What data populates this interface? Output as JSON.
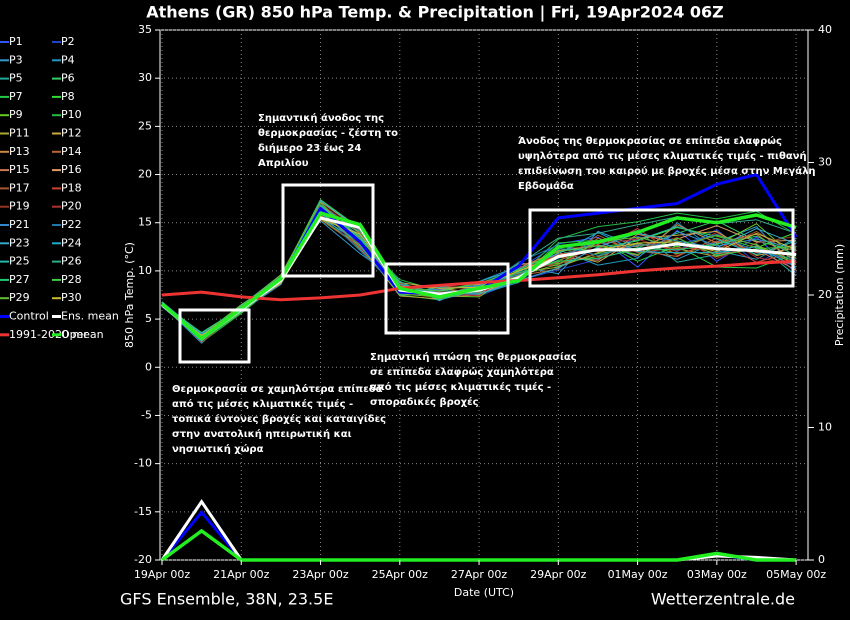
{
  "chart_data": {
    "type": "line",
    "title": "Athens  (GR)  850 hPa Temp. & Precipitation | Fri, 19Apr2024 06Z",
    "footer_left": "GFS Ensemble, 38N, 23.5E",
    "footer_right": "Wetterzentrale.de",
    "xlabel": "Date (UTC)",
    "ylabel": "850 hPa Temp. (°C)",
    "y2label": "Precipitation (mm)",
    "grid": true,
    "xlim": [
      0,
      16.3
    ],
    "xticks": [
      {
        "value": 0,
        "label": "19Apr 00z"
      },
      {
        "value": 2,
        "label": "21Apr 00z"
      },
      {
        "value": 4,
        "label": "23Apr 00z"
      },
      {
        "value": 6,
        "label": "25Apr 00z"
      },
      {
        "value": 8,
        "label": "27Apr 00z"
      },
      {
        "value": 10,
        "label": "29Apr 00z"
      },
      {
        "value": 12,
        "label": "01May 00z"
      },
      {
        "value": 14,
        "label": "03May 00z"
      },
      {
        "value": 16,
        "label": "05May 00z"
      }
    ],
    "ylim": [
      -20,
      35
    ],
    "yticks": [
      -20,
      -15,
      -10,
      -5,
      0,
      5,
      10,
      15,
      20,
      25,
      30,
      35
    ],
    "y2lim": [
      0,
      40
    ],
    "y2ticks": [
      0,
      10,
      20,
      30,
      40
    ],
    "x": [
      0,
      1,
      2,
      3,
      4,
      5,
      6,
      7,
      8,
      9,
      10,
      11,
      12,
      13,
      14,
      15,
      16
    ],
    "annotations": [
      [
        "Θερμοκρασία σε χαμηλότερα επίπεδα",
        "από τις μέσες κλιματικές τιμές -",
        "τοπικά έντονες βροχές και καταιγίδες",
        "στην ανατολική ηπειρωτική και",
        "νησιωτική χώρα"
      ],
      [
        "Σημαντική άνοδος της",
        "θερμοκρασίας - ζέστη το",
        "διήμερο 23 έως 24",
        "Απριλίου"
      ],
      [
        "Σημαντική πτώση της θερμοκρασίας",
        "σε επίπεδα ελαφρώς χαμηλότερα",
        "από τις μέσες κλιματικές τιμές -",
        "σποραδικές βροχές"
      ],
      [
        "Άνοδος της θερμοκρασίας σε επίπεδα ελαφρώς",
        "υψηλότερα από τις μέσες κλιματικές τιμές - πιθανή",
        "επιδείνωση του καιρού με βροχές μέσα στην Μεγάλη",
        "Εβδομάδα"
      ]
    ],
    "series": [
      {
        "name": "P1",
        "color": "#3355ff",
        "values": [
          6.4,
          2.8,
          6.2,
          9.3,
          15.5,
          12.4,
          8.5,
          7.2,
          8.6,
          10.2,
          12.8,
          13.5,
          10.4,
          14.2,
          11.0,
          13.5,
          9.8
        ]
      },
      {
        "name": "P2",
        "color": "#2244cc",
        "values": [
          6.6,
          3.2,
          5.8,
          8.7,
          16.8,
          14.1,
          7.6,
          8.1,
          7.4,
          9.0,
          10.1,
          11.2,
          13.6,
          12.1,
          14.3,
          10.8,
          12.9
        ]
      },
      {
        "name": "P3",
        "color": "#3399cc",
        "values": [
          6.5,
          2.5,
          6.4,
          9.6,
          15.2,
          11.8,
          8.9,
          6.9,
          8.9,
          10.5,
          9.7,
          14.1,
          12.5,
          11.2,
          13.0,
          14.6,
          10.2
        ]
      },
      {
        "name": "P4",
        "color": "#2299bb",
        "values": [
          6.7,
          3.4,
          6.0,
          8.8,
          17.1,
          13.5,
          7.9,
          7.8,
          7.6,
          8.8,
          12.2,
          10.6,
          11.3,
          15.0,
          12.1,
          11.2,
          13.4
        ]
      },
      {
        "name": "P5",
        "color": "#22aa99",
        "values": [
          6.3,
          2.9,
          5.7,
          9.2,
          16.2,
          12.9,
          8.2,
          8.3,
          8.4,
          9.9,
          11.6,
          12.9,
          14.2,
          10.9,
          11.7,
          12.8,
          9.5
        ]
      },
      {
        "name": "P6",
        "color": "#33cc66",
        "values": [
          6.8,
          3.1,
          6.3,
          9.0,
          15.9,
          13.8,
          7.5,
          7.0,
          8.1,
          10.8,
          10.5,
          11.8,
          12.4,
          13.9,
          15.2,
          13.1,
          12.1
        ]
      },
      {
        "name": "P7",
        "color": "#22cc44",
        "values": [
          6.4,
          3.6,
          6.1,
          8.6,
          16.5,
          12.2,
          8.6,
          7.7,
          7.9,
          9.2,
          12.9,
          13.2,
          11.0,
          12.6,
          10.4,
          10.3,
          11.8
        ]
      },
      {
        "name": "P8",
        "color": "#33dd33",
        "values": [
          6.6,
          2.7,
          5.9,
          9.4,
          17.4,
          14.4,
          8.0,
          8.5,
          8.7,
          9.6,
          11.1,
          12.4,
          13.1,
          14.5,
          13.6,
          12.4,
          14.0
        ]
      },
      {
        "name": "P9",
        "color": "#66cc22",
        "values": [
          6.5,
          3.3,
          6.5,
          9.1,
          15.4,
          12.6,
          7.7,
          7.4,
          7.3,
          10.1,
          10.8,
          11.5,
          12.9,
          11.8,
          12.7,
          14.9,
          11.3
        ]
      },
      {
        "name": "P10",
        "color": "#22bb44",
        "values": [
          6.7,
          2.6,
          5.6,
          8.9,
          16.9,
          13.2,
          9.1,
          7.9,
          8.8,
          9.4,
          13.3,
          14.6,
          15.1,
          16.0,
          15.4,
          16.2,
          13.8
        ]
      },
      {
        "name": "P11",
        "color": "#aaaa33",
        "values": [
          6.4,
          3.5,
          6.2,
          9.5,
          16.1,
          12.7,
          7.4,
          7.1,
          8.5,
          9.8,
          10.4,
          11.9,
          12.8,
          12.3,
          11.5,
          12.6,
          10.7
        ]
      },
      {
        "name": "P12",
        "color": "#ccaa44",
        "values": [
          6.6,
          2.9,
          5.8,
          8.8,
          15.7,
          13.6,
          8.8,
          8.2,
          7.7,
          9.1,
          11.9,
          10.9,
          13.4,
          13.7,
          14.1,
          11.6,
          12.4
        ]
      },
      {
        "name": "P13",
        "color": "#cc8844",
        "values": [
          6.5,
          3.1,
          6.0,
          9.3,
          17.2,
          14.2,
          8.3,
          7.5,
          8.3,
          10.3,
          12.1,
          12.7,
          11.6,
          14.8,
          12.9,
          13.8,
          11.0
        ]
      },
      {
        "name": "P14",
        "color": "#bb6633",
        "values": [
          6.8,
          2.7,
          6.3,
          8.7,
          16.4,
          12.3,
          7.8,
          7.9,
          8.0,
          9.5,
          10.2,
          13.4,
          12.1,
          11.5,
          13.4,
          11.9,
          12.7
        ]
      },
      {
        "name": "P15",
        "color": "#cc7755",
        "values": [
          6.3,
          3.4,
          5.9,
          9.1,
          15.8,
          13.1,
          8.1,
          7.3,
          7.5,
          10.6,
          11.4,
          11.1,
          13.8,
          12.9,
          11.8,
          12.2,
          10.1
        ]
      },
      {
        "name": "P16",
        "color": "#dd9966",
        "values": [
          6.7,
          3.0,
          6.4,
          9.4,
          16.7,
          13.9,
          7.6,
          8.0,
          8.6,
          9.3,
          12.6,
          12.0,
          12.6,
          13.3,
          14.7,
          13.0,
          13.2
        ]
      },
      {
        "name": "P17",
        "color": "#aa5533",
        "values": [
          6.5,
          2.8,
          6.1,
          8.9,
          15.3,
          12.5,
          8.7,
          7.6,
          7.8,
          9.7,
          10.9,
          13.7,
          11.9,
          12.4,
          12.2,
          14.1,
          11.5
        ]
      },
      {
        "name": "P18",
        "color": "#cc4433",
        "values": [
          6.6,
          3.3,
          5.7,
          9.2,
          16.6,
          13.4,
          8.4,
          8.4,
          8.2,
          10.0,
          11.7,
          12.3,
          14.4,
          11.6,
          13.1,
          10.9,
          12.0
        ]
      },
      {
        "name": "P19",
        "color": "#993322",
        "values": [
          6.4,
          3.2,
          6.2,
          9.0,
          17.0,
          14.0,
          7.7,
          7.2,
          8.8,
          9.2,
          12.4,
          11.4,
          12.2,
          13.5,
          11.3,
          12.9,
          13.6
        ]
      },
      {
        "name": "P20",
        "color": "#aa3333",
        "values": [
          6.7,
          2.6,
          6.0,
          9.5,
          15.6,
          12.8,
          8.5,
          7.8,
          7.4,
          10.4,
          10.6,
          12.8,
          13.3,
          12.0,
          14.0,
          11.4,
          10.6
        ]
      },
      {
        "name": "P21",
        "color": "#3388cc",
        "values": [
          6.5,
          3.5,
          5.8,
          8.6,
          16.3,
          13.7,
          7.9,
          8.1,
          8.5,
          9.6,
          11.3,
          13.1,
          11.4,
          14.1,
          12.6,
          13.3,
          12.3
        ]
      },
      {
        "name": "P22",
        "color": "#2277aa",
        "values": [
          6.6,
          2.9,
          6.3,
          9.3,
          16.0,
          12.1,
          8.0,
          7.4,
          8.1,
          10.9,
          12.7,
          11.6,
          12.7,
          12.7,
          13.8,
          12.0,
          11.2
        ]
      },
      {
        "name": "P23",
        "color": "#33aacc",
        "values": [
          6.4,
          3.1,
          6.1,
          9.1,
          17.3,
          14.3,
          8.6,
          7.7,
          7.6,
          9.0,
          10.3,
          12.5,
          13.9,
          13.1,
          12.4,
          14.4,
          12.8
        ]
      },
      {
        "name": "P24",
        "color": "#22aacc",
        "values": [
          6.8,
          3.4,
          5.9,
          8.8,
          15.5,
          13.0,
          7.5,
          8.3,
          8.9,
          10.2,
          11.8,
          14.0,
          12.0,
          11.9,
          11.9,
          12.5,
          10.4
        ]
      },
      {
        "name": "P25",
        "color": "#22bbaa",
        "values": [
          6.5,
          2.7,
          6.4,
          9.4,
          16.8,
          13.3,
          8.9,
          7.0,
          8.0,
          9.4,
          12.3,
          12.1,
          13.2,
          14.6,
          13.3,
          11.7,
          13.1
        ]
      },
      {
        "name": "P26",
        "color": "#33aa88",
        "values": [
          6.3,
          3.0,
          6.0,
          9.0,
          16.2,
          12.6,
          7.8,
          8.0,
          7.7,
          10.7,
          13.4,
          13.9,
          14.8,
          15.6,
          14.9,
          15.3,
          13.9
        ]
      },
      {
        "name": "P27",
        "color": "#22cc77",
        "values": [
          6.6,
          3.6,
          6.2,
          9.2,
          15.9,
          14.1,
          8.2,
          7.5,
          8.4,
          9.8,
          11.0,
          11.3,
          12.3,
          12.2,
          12.8,
          13.6,
          11.6
        ]
      },
      {
        "name": "P28",
        "color": "#44cc44",
        "values": [
          6.7,
          2.8,
          5.7,
          8.9,
          16.6,
          13.5,
          8.3,
          7.9,
          8.7,
          10.1,
          12.0,
          12.6,
          11.7,
          13.4,
          11.6,
          12.3,
          12.5
        ]
      },
      {
        "name": "P29",
        "color": "#66bb33",
        "values": [
          6.4,
          3.2,
          6.3,
          9.6,
          17.1,
          12.9,
          7.6,
          7.3,
          7.9,
          9.5,
          10.7,
          13.0,
          13.5,
          12.5,
          13.7,
          12.7,
          10.9
        ]
      },
      {
        "name": "P30",
        "color": "#ccbb33",
        "values": [
          6.6,
          3.3,
          6.1,
          8.7,
          15.4,
          13.8,
          8.4,
          8.2,
          8.3,
          10.0,
          11.5,
          12.2,
          12.9,
          13.0,
          12.0,
          13.9,
          12.2
        ]
      },
      {
        "name": "Control",
        "color": "#0000ff",
        "width": 3,
        "values": [
          6.5,
          3.0,
          6.0,
          9.0,
          16.5,
          13.0,
          7.8,
          7.6,
          8.0,
          10.5,
          15.5,
          16.0,
          16.5,
          17.0,
          19.0,
          20.0,
          13.5
        ],
        "precip": [
          0,
          3.6,
          0,
          0,
          0,
          0,
          0,
          0,
          0,
          0,
          0,
          0,
          0,
          0,
          0.4,
          0,
          0
        ]
      },
      {
        "name": "Ens. mean",
        "color": "#ffffff",
        "width": 3,
        "values": [
          6.5,
          3.0,
          6.0,
          9.0,
          15.5,
          14.5,
          8.0,
          7.6,
          8.0,
          9.3,
          11.5,
          12.2,
          12.2,
          12.8,
          12.3,
          12.1,
          11.7
        ],
        "precip": [
          0,
          4.4,
          0,
          0,
          0,
          0,
          0,
          0,
          0,
          0,
          0,
          0,
          0,
          0,
          0.3,
          0.2,
          0
        ]
      },
      {
        "name": "1991-2020 mean",
        "color": "#ee3333",
        "width": 3,
        "values": [
          7.5,
          7.8,
          7.3,
          7.0,
          7.2,
          7.5,
          8.2,
          8.5,
          8.8,
          9.0,
          9.3,
          9.6,
          10.0,
          10.3,
          10.5,
          10.8,
          11.0
        ]
      },
      {
        "name": "Oper",
        "color": "#22ee22",
        "width": 3.5,
        "values": [
          6.6,
          3.0,
          6.1,
          9.2,
          16.0,
          14.8,
          8.2,
          7.3,
          8.2,
          9.0,
          12.5,
          13.0,
          14.0,
          15.5,
          15.0,
          15.8,
          14.5
        ],
        "precip": [
          0,
          2.2,
          0,
          0,
          0,
          0,
          0,
          0,
          0,
          0,
          0,
          0,
          0,
          0,
          0.5,
          0,
          0
        ]
      }
    ]
  }
}
